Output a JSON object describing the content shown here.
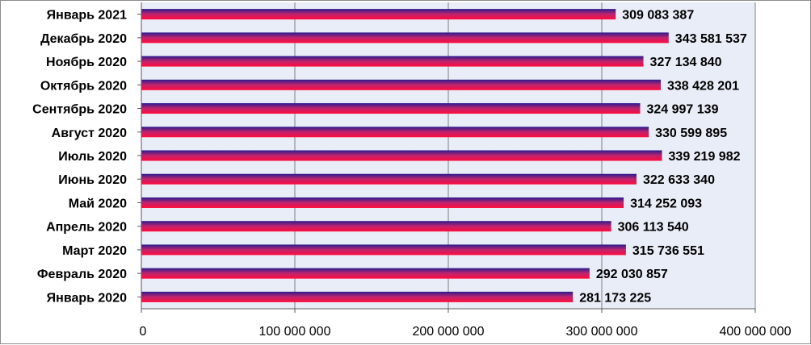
{
  "chart_data": {
    "type": "bar",
    "orientation": "horizontal",
    "categories": [
      "Январь 2021",
      "Декабрь 2020",
      "Ноябрь 2020",
      "Октябрь 2020",
      "Сентябрь 2020",
      "Август 2020",
      "Июль 2020",
      "Июнь 2020",
      "Май 2020",
      "Апрель 2020",
      "Март 2020",
      "Февраль 2020",
      "Январь 2020"
    ],
    "values": [
      309083387,
      343581537,
      327134840,
      338428201,
      324997139,
      330599895,
      339219982,
      322633340,
      314252093,
      306113540,
      315736551,
      292030857,
      281173225
    ],
    "value_labels": [
      "309 083 387",
      "343 581 537",
      "327 134 840",
      "338 428 201",
      "324 997 139",
      "330 599 895",
      "339 219 982",
      "322 633 340",
      "314 252 093",
      "306 113 540",
      "315 736 551",
      "292 030 857",
      "281 173 225"
    ],
    "xlim": [
      0,
      400000000
    ],
    "x_ticks": [
      0,
      100000000,
      200000000,
      300000000,
      400000000
    ],
    "x_tick_labels": [
      "0",
      "100 000 000",
      "200 000 000",
      "300 000 000",
      "400 000 000"
    ],
    "grid": "vertical",
    "legend": "none",
    "colors": {
      "bar_top": "#2a1b8f",
      "bar_mid": "#c0246e",
      "bar_bottom": "#ff0a3c",
      "plot_background": "#e9edf7",
      "gridline": "#7f7f7f",
      "axis": "#595959",
      "border": "#8c8c8c"
    }
  }
}
